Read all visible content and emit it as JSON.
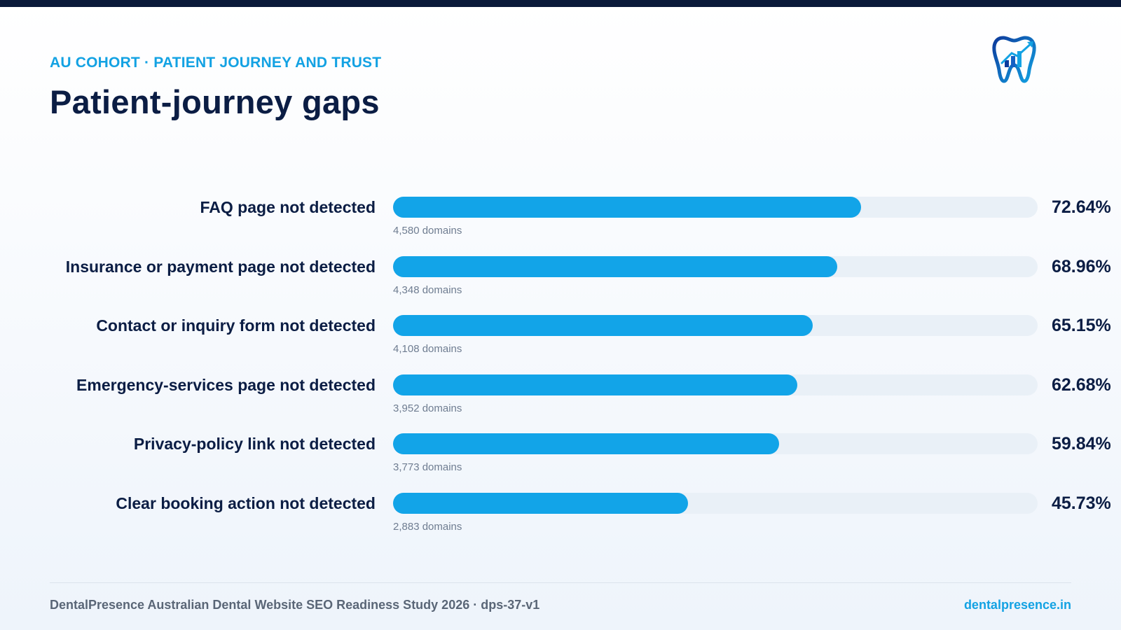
{
  "header": {
    "eyebrow": "AU COHORT · PATIENT JOURNEY AND TRUST",
    "title": "Patient-journey gaps",
    "logo_icon": "tooth-growth-chart-icon"
  },
  "colors": {
    "accent": "#12a4e8",
    "navy": "#0b1d44",
    "track": "#e9f0f7",
    "muted": "#6f7d91"
  },
  "chart_data": {
    "type": "bar",
    "orientation": "horizontal",
    "title": "Patient-journey gaps",
    "xlim": [
      0,
      100
    ],
    "grid": false,
    "categories": [
      "FAQ page not detected",
      "Insurance or payment page not detected",
      "Contact or inquiry form not detected",
      "Emergency-services page not detected",
      "Privacy-policy link not detected",
      "Clear booking action not detected"
    ],
    "values": [
      72.64,
      68.96,
      65.15,
      62.68,
      59.84,
      45.73
    ],
    "value_labels": [
      "72.64%",
      "68.96%",
      "65.15%",
      "62.68%",
      "59.84%",
      "45.73%"
    ],
    "counts": [
      "4,580 domains",
      "4,348 domains",
      "4,108 domains",
      "3,952 domains",
      "3,773 domains",
      "2,883 domains"
    ]
  },
  "footer": {
    "study": "DentalPresence Australian Dental Website SEO Readiness Study 2026 · dps-37-v1",
    "website": "dentalpresence.in"
  }
}
